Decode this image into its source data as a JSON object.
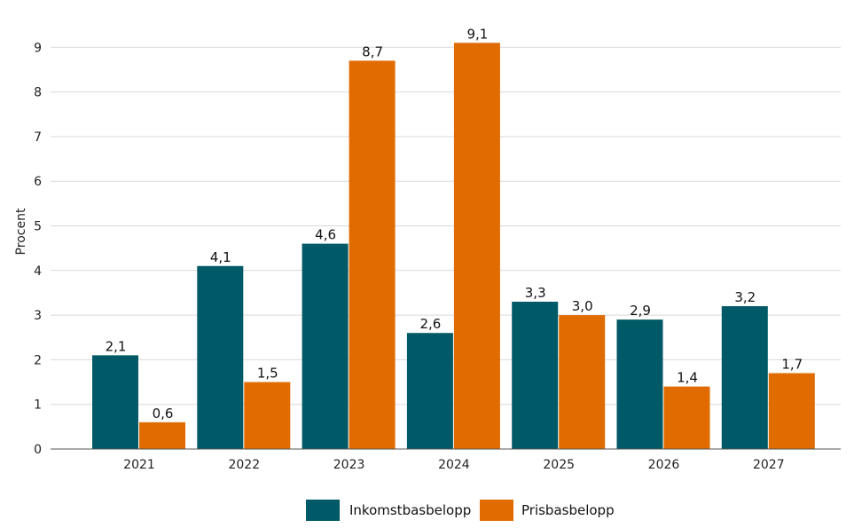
{
  "chart_data": {
    "type": "bar",
    "title": "",
    "xlabel": "",
    "ylabel": "Procent",
    "ylim": [
      0,
      9.8
    ],
    "yticks": [
      "0",
      "1",
      "2",
      "3",
      "4",
      "5",
      "6",
      "7",
      "8",
      "9"
    ],
    "categories": [
      "2021",
      "2022",
      "2023",
      "2024",
      "2025",
      "2026",
      "2027"
    ],
    "series": [
      {
        "name": "Inkomstbasbelopp",
        "color": "#005966",
        "values": [
          2.1,
          4.1,
          4.6,
          2.6,
          3.3,
          2.9,
          3.2
        ],
        "labels": [
          "2,1",
          "4,1",
          "4,6",
          "2,6",
          "3,3",
          "2,9",
          "3,2"
        ]
      },
      {
        "name": "Prisbasbelopp",
        "color": "#E06C00",
        "values": [
          0.6,
          1.5,
          8.7,
          9.1,
          3.0,
          1.4,
          1.7
        ],
        "labels": [
          "0,6",
          "1,5",
          "8,7",
          "9,1",
          "3,0",
          "1,4",
          "1,7"
        ]
      }
    ],
    "grid": true,
    "legend_position": "bottom-center"
  }
}
